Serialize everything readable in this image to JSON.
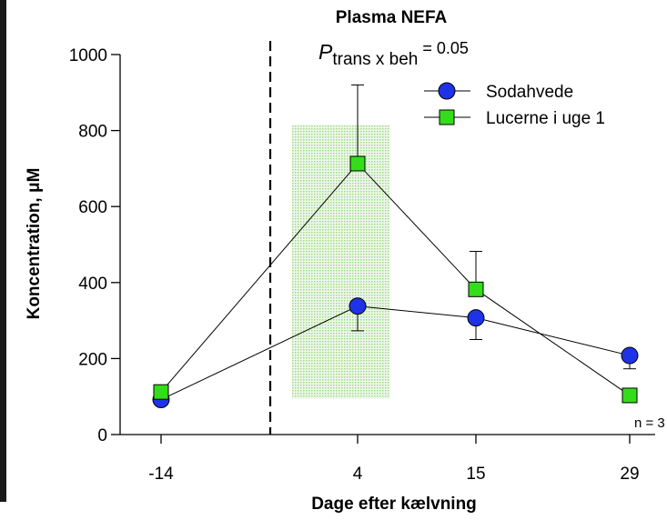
{
  "chart_data": {
    "type": "line",
    "title": "Plasma NEFA",
    "xlabel": "Dage efter kælvning",
    "ylabel": "Koncentration, μM",
    "categories": [
      "-14",
      "4",
      "15",
      "29"
    ],
    "x": [
      -14,
      4,
      15,
      29
    ],
    "ylim": [
      0,
      1000
    ],
    "yticks": [
      0,
      200,
      400,
      600,
      800,
      1000
    ],
    "ytick_labels": [
      "0",
      "200",
      "400",
      "600",
      "800",
      "1000"
    ],
    "series": [
      {
        "name": "Sodahvede",
        "marker": "circle",
        "color": "#1f33e6",
        "values": [
          92,
          338,
          307,
          208
        ],
        "error_up": [
          null,
          null,
          null,
          null
        ],
        "error_down": [
          null,
          65,
          57,
          35
        ]
      },
      {
        "name": "Lucerne i uge 1",
        "marker": "square",
        "color": "#33dd1a",
        "values": [
          112,
          713,
          382,
          103
        ],
        "error_up": [
          null,
          207,
          100,
          null
        ],
        "error_down": [
          null,
          null,
          null,
          null
        ]
      }
    ],
    "annotation": {
      "p_symbol": "P",
      "p_subscript": "trans x beh",
      "p_value": " = 0.05",
      "n_label": "n = 3"
    },
    "shaded_region": {
      "x_from": -2,
      "x_to": 7,
      "y_from": 95,
      "y_to": 815,
      "color": "#b8e6a6"
    },
    "vline_x": -4,
    "legend_position": "top-right",
    "grid": false
  }
}
